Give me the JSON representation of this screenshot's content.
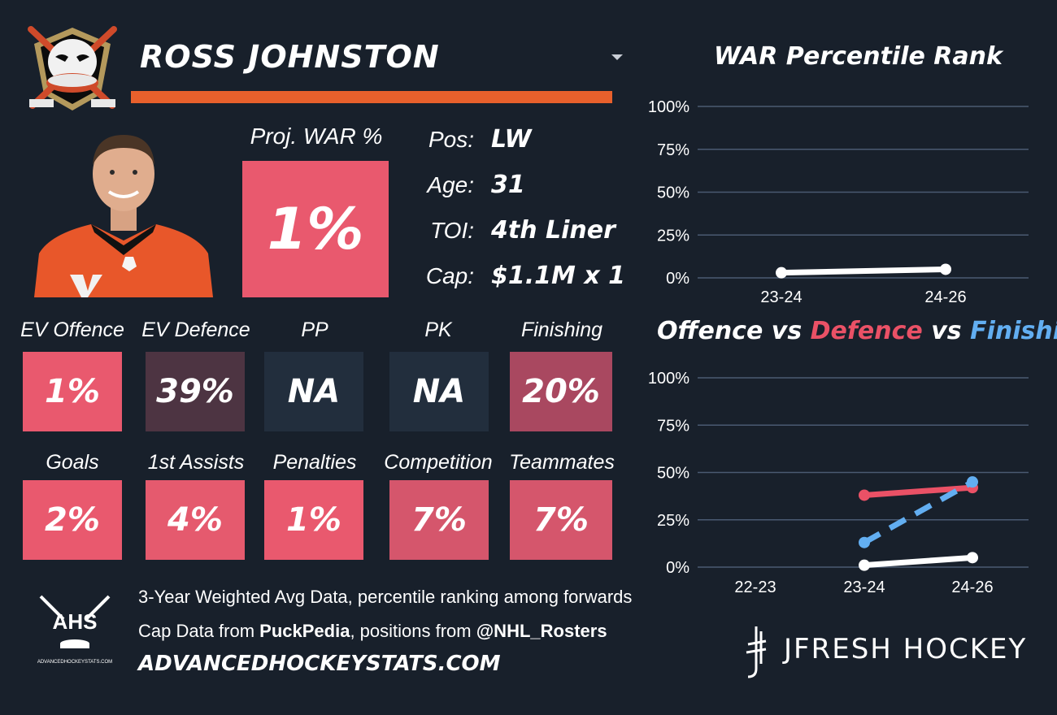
{
  "player": {
    "name": "ROSS JOHNSTON",
    "proj_war_label": "Proj. WAR %",
    "proj_war_value": "1%",
    "proj_war_color": "#e9596e",
    "info": [
      {
        "key": "Pos:",
        "value": "LW"
      },
      {
        "key": "Age:",
        "value": "31"
      },
      {
        "key": "TOI:",
        "value": "4th Liner"
      },
      {
        "key": "Cap:",
        "value": "$1.1M x 1"
      }
    ]
  },
  "colors": {
    "accent_bar": "#e8602c",
    "defence_red": "#ea5166",
    "finishing_blue": "#62aef1",
    "gridline": "#4a5a72"
  },
  "stats_row1": [
    {
      "label": "EV Offence",
      "value": "1%",
      "color": "#e9596e"
    },
    {
      "label": "EV Defence",
      "value": "39%",
      "color": "#4d3442"
    },
    {
      "label": "PP",
      "value": "NA",
      "color": "#222e3d"
    },
    {
      "label": "PK",
      "value": "NA",
      "color": "#222e3d"
    },
    {
      "label": "Finishing",
      "value": "20%",
      "color": "#a94860"
    }
  ],
  "stats_row2": [
    {
      "label": "Goals",
      "value": "2%",
      "color": "#e9596e"
    },
    {
      "label": "1st Assists",
      "value": "4%",
      "color": "#e55a6e"
    },
    {
      "label": "Penalties",
      "value": "1%",
      "color": "#e9596e"
    },
    {
      "label": "Competition",
      "value": "7%",
      "color": "#d5566c"
    },
    {
      "label": "Teammates",
      "value": "7%",
      "color": "#d5566c"
    }
  ],
  "footer": {
    "line1": "3-Year Weighted Avg Data, percentile ranking among forwards",
    "line2_prefix": "Cap Data from ",
    "line2_bold1": "PuckPedia",
    "line2_mid": ", positions from ",
    "line2_bold2": "@NHL_Rosters",
    "site": "ADVANCEDHOCKEYSTATS.COM",
    "ahs_logo_text": "AHS",
    "ahs_logo_small": "ADVANCEDHOCKEYSTATS.COM",
    "brand": "JFRESH HOCKEY"
  },
  "chart_data": [
    {
      "type": "line",
      "title": "WAR Percentile Rank",
      "categories": [
        "23-24",
        "24-26"
      ],
      "yticks": [
        "100%",
        "75%",
        "50%",
        "25%",
        "0%"
      ],
      "ylim": [
        0,
        100
      ],
      "grid": true,
      "series": [
        {
          "values": [
            3,
            5
          ],
          "color": "#ffffff",
          "dashed": false
        }
      ]
    },
    {
      "type": "line",
      "title_parts": [
        {
          "text": "Offence",
          "color": "#ffffff"
        },
        {
          "text": " vs ",
          "color": "#ffffff"
        },
        {
          "text": "Defence",
          "color": "#ea5166"
        },
        {
          "text": " vs ",
          "color": "#ffffff"
        },
        {
          "text": "Finishing",
          "color": "#62aef1"
        }
      ],
      "categories": [
        "22-23",
        "23-24",
        "24-26"
      ],
      "yticks": [
        "100%",
        "75%",
        "50%",
        "25%",
        "0%"
      ],
      "ylim": [
        0,
        100
      ],
      "grid": true,
      "series": [
        {
          "name": "Offence",
          "values": [
            null,
            1,
            5
          ],
          "color": "#ffffff",
          "dashed": false
        },
        {
          "name": "Defence",
          "values": [
            null,
            38,
            42
          ],
          "color": "#ea5166",
          "dashed": false
        },
        {
          "name": "Finishing",
          "values": [
            null,
            13,
            45
          ],
          "color": "#62aef1",
          "dashed": true
        }
      ]
    }
  ]
}
